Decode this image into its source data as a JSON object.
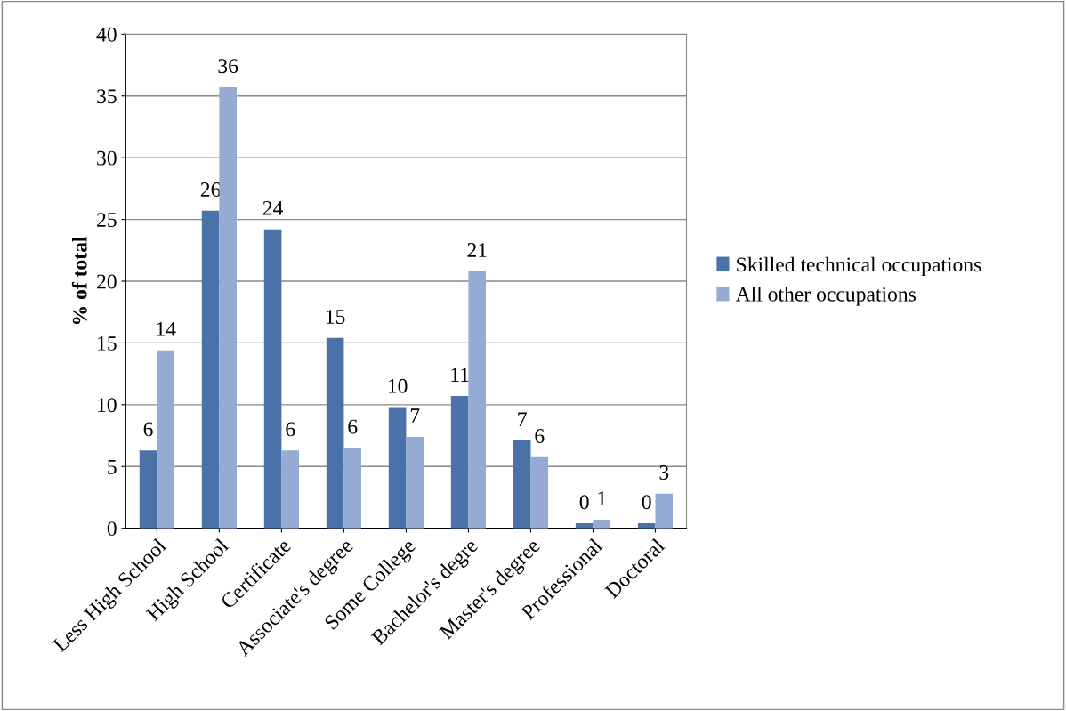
{
  "chart_data": {
    "type": "bar",
    "ylabel": "% of total",
    "categories": [
      "Less High School",
      "High School",
      "Certificate",
      "Associate's degree",
      "Some College",
      "Bachelor's degre",
      "Master's degree",
      "Professional",
      "Doctoral"
    ],
    "series": [
      {
        "name": "Skilled technical occupations",
        "color": "#4a72a8",
        "values": [
          6.3,
          25.7,
          24.2,
          15.4,
          9.8,
          10.7,
          7.1,
          0.4,
          0.4
        ],
        "value_labels": [
          "6",
          "26",
          "24",
          "15",
          "10",
          "11",
          "7",
          "0",
          "0"
        ]
      },
      {
        "name": "All other occupations",
        "color": "#95abd3",
        "values": [
          14.4,
          35.7,
          6.3,
          6.5,
          7.4,
          20.8,
          5.75,
          0.7,
          2.8
        ],
        "value_labels": [
          "14",
          "36",
          "6",
          "6",
          "7",
          "21",
          "6",
          "1",
          "3"
        ]
      }
    ],
    "ylim": [
      0,
      40
    ],
    "yticks": [
      0,
      5,
      10,
      15,
      20,
      25,
      30,
      35,
      40
    ],
    "grid": "y",
    "legend": "right"
  }
}
